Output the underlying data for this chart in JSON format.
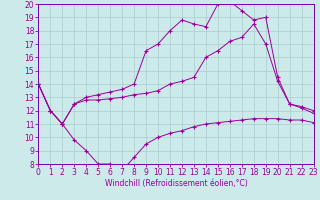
{
  "xlabel": "Windchill (Refroidissement éolien,°C)",
  "bg_color": "#cceaea",
  "grid_color": "#aacccc",
  "line_color": "#990099",
  "spine_color": "#7700aa",
  "xlim": [
    0,
    23
  ],
  "ylim": [
    8,
    20
  ],
  "xticks": [
    0,
    1,
    2,
    3,
    4,
    5,
    6,
    7,
    8,
    9,
    10,
    11,
    12,
    13,
    14,
    15,
    16,
    17,
    18,
    19,
    20,
    21,
    22,
    23
  ],
  "yticks": [
    8,
    9,
    10,
    11,
    12,
    13,
    14,
    15,
    16,
    17,
    18,
    19,
    20
  ],
  "line1_x": [
    0,
    1,
    2,
    3,
    4,
    5,
    6,
    7,
    8,
    9,
    10,
    11,
    12,
    13,
    14,
    15,
    16,
    17,
    18,
    19,
    20,
    21,
    22,
    23
  ],
  "line1_y": [
    14,
    12,
    11,
    9.8,
    9.0,
    8.0,
    8.0,
    7.5,
    8.5,
    9.5,
    10,
    10.3,
    10.5,
    10.8,
    11.0,
    11.1,
    11.2,
    11.3,
    11.4,
    11.4,
    11.4,
    11.3,
    11.3,
    11.1
  ],
  "line2_x": [
    0,
    1,
    2,
    3,
    4,
    5,
    6,
    7,
    8,
    9,
    10,
    11,
    12,
    13,
    14,
    15,
    16,
    17,
    18,
    19,
    20,
    21,
    22,
    23
  ],
  "line2_y": [
    14,
    12,
    11,
    12.5,
    12.8,
    12.8,
    12.9,
    13.0,
    13.2,
    13.3,
    13.5,
    14.0,
    14.2,
    14.5,
    16.0,
    16.5,
    17.2,
    17.5,
    18.5,
    17.0,
    14.2,
    12.5,
    12.3,
    12.0
  ],
  "line3_x": [
    0,
    1,
    2,
    3,
    4,
    5,
    6,
    7,
    8,
    9,
    10,
    11,
    12,
    13,
    14,
    15,
    16,
    17,
    18,
    19,
    20,
    21,
    22,
    23
  ],
  "line3_y": [
    14,
    12,
    11,
    12.5,
    13.0,
    13.2,
    13.4,
    13.6,
    14.0,
    16.5,
    17.0,
    18.0,
    18.8,
    18.5,
    18.3,
    20.0,
    20.2,
    19.5,
    18.8,
    19.0,
    14.5,
    12.5,
    12.2,
    11.8
  ],
  "tick_fontsize": 5.5,
  "xlabel_fontsize": 5.5
}
